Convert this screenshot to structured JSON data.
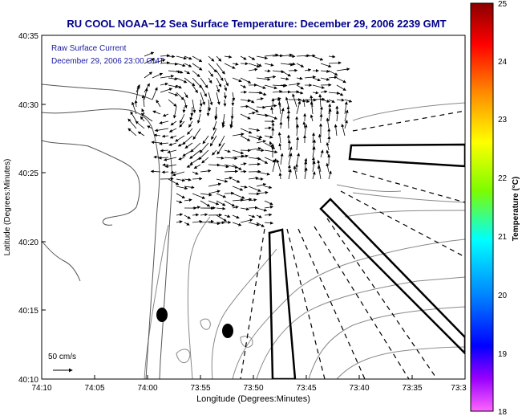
{
  "title": "RU COOL  NOAA−12  Sea Surface Temperature:  December 29, 2006 2239 GMT",
  "overlay": {
    "line1": "Raw Surface Current",
    "line2": "December 29, 2006 23:00 GMT"
  },
  "scale_label": "50 cm/s",
  "x_axis": {
    "label": "Longitude (Degrees:Minutes)",
    "ticks": [
      "74:10",
      "74:05",
      "74:00",
      "73:55",
      "73:50",
      "73:45",
      "73:40",
      "73:35",
      "73:3"
    ]
  },
  "y_axis": {
    "label": "Latitude (Degrees:Minutes)",
    "ticks": [
      "40:35",
      "40:30",
      "40:25",
      "40:20",
      "40:15",
      "40:10"
    ]
  },
  "colorbar": {
    "label": "Temperature (°C)",
    "ticks": [
      "25",
      "24",
      "23",
      "22",
      "21",
      "20",
      "19",
      "18"
    ],
    "colors": [
      "#8b0000",
      "#ff0000",
      "#ff8c00",
      "#ffff00",
      "#7cfc00",
      "#00ffff",
      "#0080ff",
      "#0000ff",
      "#9900ff",
      "#ff66ff"
    ]
  },
  "colors": {
    "title": "#00008b",
    "overlay_text": "#1a1aa0",
    "coast": "#555555",
    "contour": "#888888",
    "frame": "#000000"
  }
}
